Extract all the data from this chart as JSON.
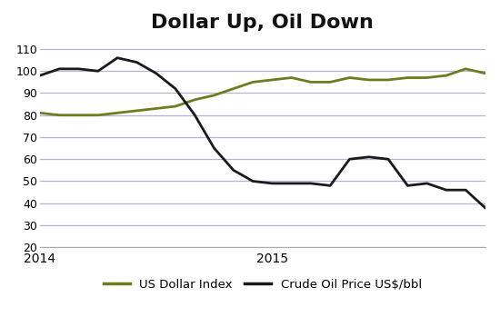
{
  "title": "Dollar Up, Oil Down",
  "title_fontsize": 16,
  "title_fontweight": "bold",
  "ylim": [
    20,
    115
  ],
  "yticks": [
    20,
    30,
    40,
    50,
    60,
    70,
    80,
    90,
    100,
    110
  ],
  "background_color": "#ffffff",
  "grid_color": "#b0b8d0",
  "dollar_color": "#6b7d1e",
  "oil_color": "#1a1a1a",
  "line_width": 2.0,
  "dollar_data": [
    81,
    80,
    80,
    80,
    81,
    82,
    83,
    84,
    87,
    89,
    92,
    95,
    96,
    97,
    95,
    95,
    97,
    96,
    96,
    97,
    97,
    98,
    101,
    99
  ],
  "oil_data": [
    98,
    101,
    101,
    100,
    106,
    104,
    99,
    92,
    80,
    65,
    55,
    50,
    49,
    49,
    49,
    48,
    60,
    61,
    60,
    48,
    49,
    46,
    46,
    38
  ],
  "xtick_positions": [
    0,
    12
  ],
  "xtick_labels": [
    "2014",
    "2015"
  ],
  "legend_dollar_label": "US Dollar Index",
  "legend_oil_label": "Crude Oil Price US$/bbl",
  "legend_fontsize": 9.5,
  "legend_linewidth": 2.5,
  "n_points": 24,
  "xlim_start": 0,
  "xlim_end": 23
}
